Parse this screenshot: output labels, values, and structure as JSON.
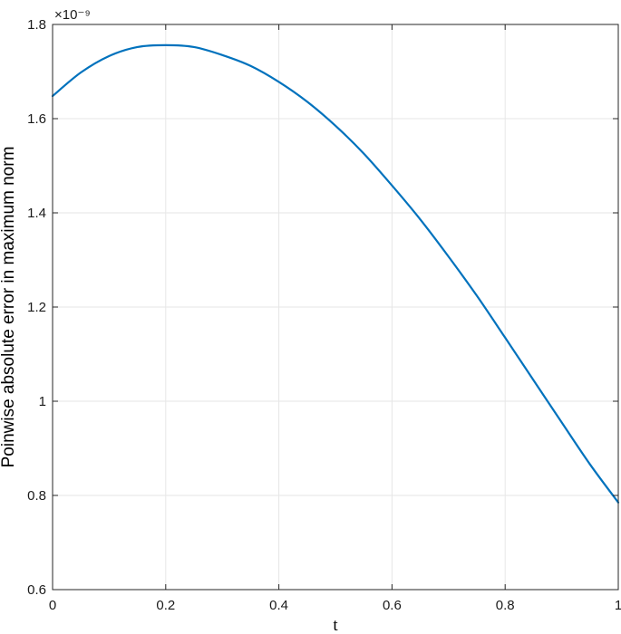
{
  "chart_data": {
    "type": "line",
    "title": "",
    "xlabel": "t",
    "ylabel": "Poinwise absolute error in maximum norm",
    "y_exponent_label": "×10⁻⁹",
    "xlim": [
      0,
      1
    ],
    "ylim": [
      0.6,
      1.8
    ],
    "y_scale_factor": 1e-09,
    "grid": true,
    "xticks": [
      0,
      0.2,
      0.4,
      0.6,
      0.8,
      1
    ],
    "xtick_labels": [
      "0",
      "0.2",
      "0.4",
      "0.6",
      "0.8",
      "1"
    ],
    "yticks": [
      0.6,
      0.8,
      1.0,
      1.2,
      1.4,
      1.6,
      1.8
    ],
    "ytick_labels": [
      "0.6",
      "0.8",
      "1",
      "1.2",
      "1.4",
      "1.6",
      "1.8"
    ],
    "series": [
      {
        "color": "#0072bd",
        "x": [
          0,
          0.05,
          0.1,
          0.15,
          0.2,
          0.25,
          0.3,
          0.35,
          0.4,
          0.45,
          0.5,
          0.55,
          0.6,
          0.65,
          0.7,
          0.75,
          0.8,
          0.85,
          0.9,
          0.95,
          1.0
        ],
        "y": [
          1.648,
          1.698,
          1.733,
          1.752,
          1.756,
          1.752,
          1.735,
          1.712,
          1.678,
          1.636,
          1.585,
          1.526,
          1.458,
          1.386,
          1.307,
          1.224,
          1.135,
          1.045,
          0.955,
          0.866,
          0.785
        ]
      }
    ]
  }
}
